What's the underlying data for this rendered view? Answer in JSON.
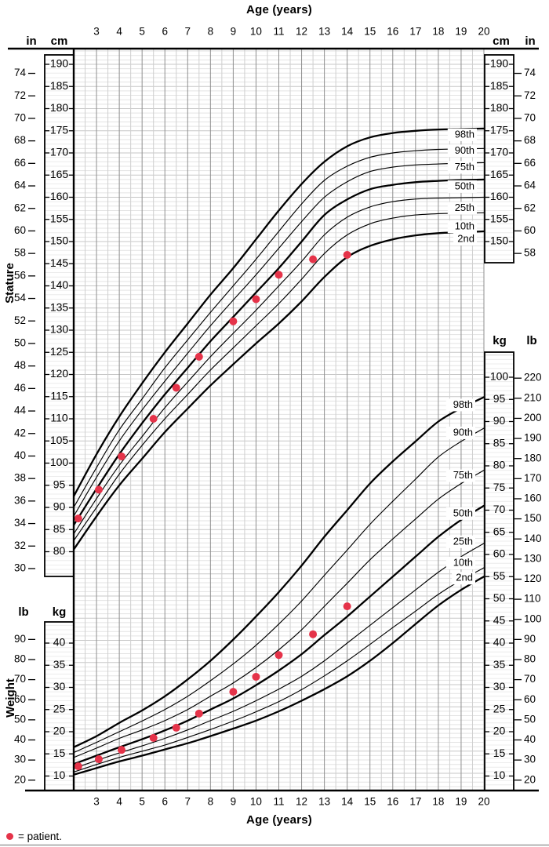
{
  "page": {
    "top_axis_title": "Age (years)",
    "bottom_axis_title": "Age (years)",
    "stature_axis_label": "Stature",
    "weight_axis_label": "Weight",
    "legend": {
      "label": "= patient.",
      "marker_color": "#e53349"
    },
    "units": {
      "inches": "in",
      "centimeters": "cm",
      "kilograms": "kg",
      "pounds": "lb"
    }
  },
  "axes": {
    "age_ticks": [
      3,
      4,
      5,
      6,
      7,
      8,
      9,
      10,
      11,
      12,
      13,
      14,
      15,
      16,
      17,
      18,
      19,
      20
    ],
    "stature_left_cm": [
      190,
      185,
      180,
      175,
      170,
      165,
      160,
      155,
      150,
      145,
      140,
      135,
      130,
      125,
      120,
      115,
      110,
      105,
      100,
      95,
      90,
      85,
      80
    ],
    "stature_left_in": [
      74,
      72,
      70,
      68,
      66,
      64,
      62,
      60,
      58,
      56,
      54,
      52,
      50,
      48,
      46,
      44,
      42,
      40,
      38,
      36,
      34,
      32,
      30
    ],
    "stature_right_cm": [
      190,
      185,
      180,
      175,
      170,
      165,
      160,
      155,
      150
    ],
    "stature_right_in": [
      74,
      72,
      70,
      68,
      66,
      64,
      62,
      60,
      58
    ],
    "weight_left_kg": [
      40,
      35,
      30,
      25,
      20,
      15,
      10
    ],
    "weight_left_lb": [
      90,
      80,
      70,
      60,
      50,
      40,
      30,
      20
    ],
    "weight_right_kg": [
      100,
      95,
      90,
      85,
      80,
      75,
      70,
      65,
      60,
      55,
      50,
      45,
      40,
      35,
      30,
      25,
      20,
      15,
      10
    ],
    "weight_right_lb": [
      220,
      210,
      200,
      190,
      180,
      170,
      160,
      150,
      140,
      130,
      120,
      110,
      100,
      90,
      80,
      70,
      60,
      50,
      40,
      30,
      20
    ]
  },
  "chart_data": [
    {
      "type": "line",
      "panel": "Stature",
      "x_unit": "years",
      "y_unit": "cm",
      "xlim": [
        2,
        20
      ],
      "ylim": [
        80,
        190
      ],
      "x": [
        2,
        3,
        4,
        5,
        6,
        7,
        8,
        9,
        10,
        11,
        12,
        13,
        14,
        15,
        16,
        17,
        18,
        19,
        20
      ],
      "percentiles": [
        {
          "name": "98th",
          "values": [
            92.5,
            102,
            110.5,
            118,
            125,
            131.5,
            138,
            144,
            150.5,
            157,
            163,
            168,
            171.5,
            173.5,
            174.5,
            175,
            175.3,
            175.4,
            175.5
          ]
        },
        {
          "name": "90th",
          "values": [
            90,
            99,
            107.5,
            114.5,
            121.5,
            127.8,
            134,
            140,
            146,
            152.3,
            158.5,
            163.8,
            167,
            169,
            170,
            170.5,
            170.8,
            170.9,
            171
          ]
        },
        {
          "name": "75th",
          "values": [
            88,
            96.8,
            105,
            112,
            118.5,
            124.8,
            131,
            136.8,
            142.5,
            148.5,
            154.5,
            160,
            163.5,
            165.8,
            166.8,
            167.3,
            167.5,
            167.7,
            167.8
          ]
        },
        {
          "name": "50th",
          "values": [
            86,
            94.2,
            102,
            109,
            115.5,
            121.5,
            127.5,
            133,
            138.5,
            144,
            150,
            156,
            159.5,
            161.8,
            162.8,
            163.4,
            163.7,
            163.9,
            164
          ]
        },
        {
          "name": "25th",
          "values": [
            84,
            92,
            99.5,
            106,
            112.5,
            118.3,
            124,
            129.3,
            134.5,
            140,
            145.5,
            151.5,
            155.5,
            157.8,
            159,
            159.6,
            159.8,
            159.9,
            160
          ]
        },
        {
          "name": "10th",
          "values": [
            82.5,
            90,
            97.5,
            104,
            110,
            115.5,
            121,
            126,
            131,
            136,
            141.5,
            147.3,
            151.5,
            154,
            155.3,
            156,
            156.3,
            156.4,
            156.5
          ]
        },
        {
          "name": "2nd",
          "values": [
            80.5,
            88,
            95,
            101,
            107,
            112.3,
            117.5,
            122.3,
            127,
            131.5,
            136.5,
            142,
            146.5,
            149,
            150.5,
            151.4,
            151.9,
            152.1,
            152.3
          ]
        }
      ],
      "patient_points": [
        [
          2.2,
          87.5
        ],
        [
          3.1,
          94
        ],
        [
          4.1,
          101.5
        ],
        [
          5.5,
          110
        ],
        [
          6.5,
          117
        ],
        [
          7.5,
          124
        ],
        [
          9,
          132
        ],
        [
          10,
          137
        ],
        [
          11,
          142.5
        ],
        [
          12.5,
          146
        ],
        [
          14,
          147
        ]
      ]
    },
    {
      "type": "line",
      "panel": "Weight",
      "x_unit": "years",
      "y_unit": "kg",
      "xlim": [
        2,
        20
      ],
      "ylim": [
        10,
        100
      ],
      "x": [
        2,
        3,
        4,
        5,
        6,
        7,
        8,
        9,
        10,
        11,
        12,
        13,
        14,
        15,
        16,
        17,
        18,
        19,
        20
      ],
      "percentiles": [
        {
          "name": "98th",
          "values": [
            16.5,
            19,
            22,
            24.8,
            28,
            31.8,
            36,
            40.8,
            46,
            51.5,
            57.5,
            64,
            70,
            76,
            81,
            85.5,
            90,
            93,
            95.5
          ]
        },
        {
          "name": "90th",
          "values": [
            15.3,
            17.6,
            20,
            22.4,
            25,
            28,
            31.5,
            35.3,
            39.5,
            44.3,
            49.5,
            55.3,
            61,
            66.8,
            72,
            77,
            82,
            85.5,
            88.5
          ]
        },
        {
          "name": "75th",
          "values": [
            14.2,
            16.3,
            18.5,
            20.4,
            22.5,
            25,
            28,
            31,
            34.5,
            38.5,
            43,
            48.3,
            53.5,
            58.8,
            63.5,
            68,
            72.5,
            76,
            79
          ]
        },
        {
          "name": "50th",
          "values": [
            12.7,
            14.6,
            16.5,
            18.3,
            20.3,
            22.5,
            25,
            27.5,
            30.5,
            33.8,
            37.5,
            41.8,
            46,
            50.5,
            55,
            59.5,
            64,
            67.8,
            71
          ]
        },
        {
          "name": "25th",
          "values": [
            11.7,
            13.5,
            15.2,
            16.8,
            18.5,
            20.4,
            22.5,
            24.6,
            27,
            29.6,
            32.5,
            36,
            40,
            44,
            48,
            52,
            56,
            59.5,
            62.5
          ]
        },
        {
          "name": "10th",
          "values": [
            10.9,
            12.6,
            14.2,
            15.6,
            17,
            18.7,
            20.5,
            22.4,
            24.5,
            26.8,
            29.5,
            32.6,
            36,
            39.7,
            43.5,
            47.2,
            51,
            54.2,
            57
          ]
        },
        {
          "name": "2nd",
          "values": [
            10.3,
            11.8,
            13.3,
            14.6,
            16,
            17.4,
            19,
            20.7,
            22.5,
            24.6,
            27,
            29.6,
            32.5,
            36,
            40,
            44.3,
            48.5,
            52,
            55
          ]
        }
      ],
      "patient_points": [
        [
          2.2,
          12.2
        ],
        [
          3.1,
          13.8
        ],
        [
          4.1,
          15.9
        ],
        [
          5.5,
          18.6
        ],
        [
          6.5,
          20.9
        ],
        [
          7.5,
          24.1
        ],
        [
          9,
          29
        ],
        [
          10,
          32.4
        ],
        [
          11,
          37.3
        ],
        [
          12.5,
          42
        ],
        [
          14,
          48.3
        ]
      ]
    }
  ]
}
